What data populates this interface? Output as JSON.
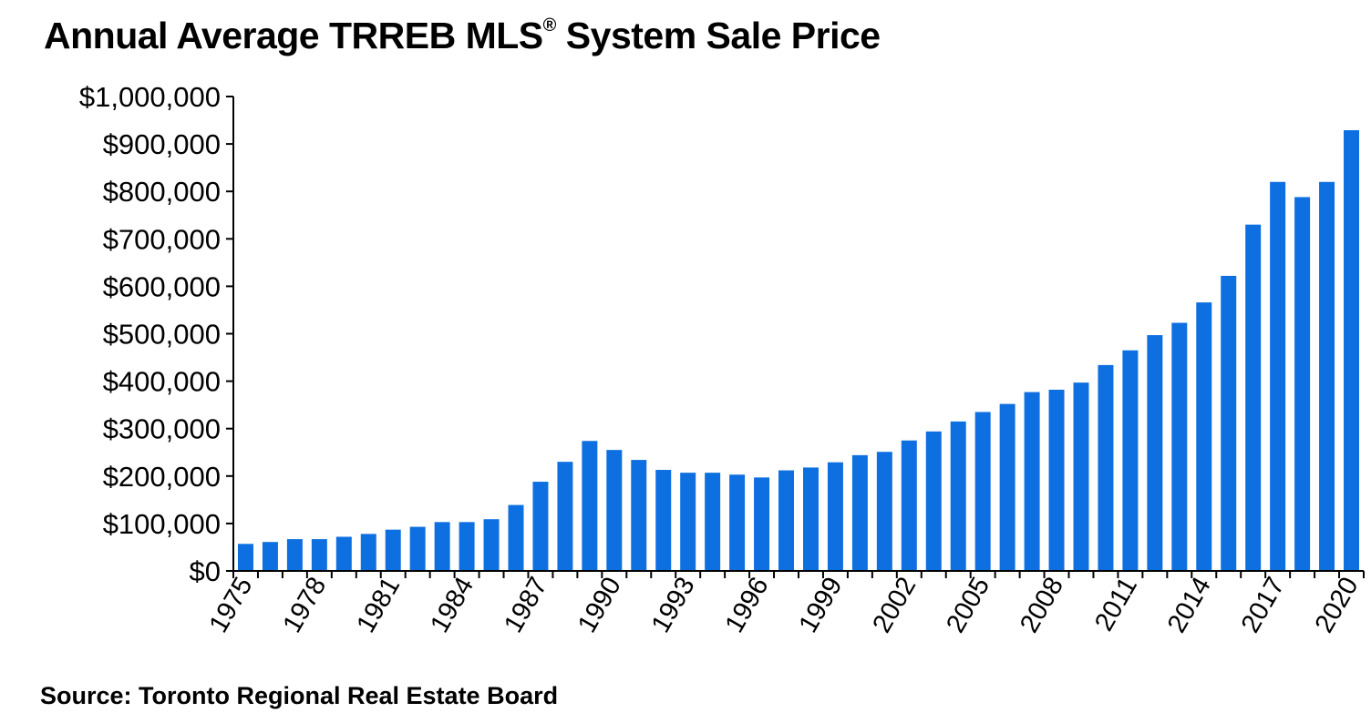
{
  "chart_data": {
    "type": "bar",
    "title": "Annual Average TRREB MLS",
    "title_mark": "®",
    "title_suffix": " System Sale Price",
    "source": "Source: Toronto Regional Real Estate Board",
    "xlabel": "",
    "ylabel": "",
    "ylim": [
      0,
      1000000
    ],
    "yticks": [
      0,
      100000,
      200000,
      300000,
      400000,
      500000,
      600000,
      700000,
      800000,
      900000,
      1000000
    ],
    "ytick_labels": [
      "$0",
      "$100,000",
      "$200,000",
      "$300,000",
      "$400,000",
      "$500,000",
      "$600,000",
      "$700,000",
      "$800,000",
      "$900,000",
      "$1,000,000"
    ],
    "xtick_labels": [
      "1975",
      "1978",
      "1981",
      "1984",
      "1987",
      "1990",
      "1993",
      "1996",
      "1999",
      "2002",
      "2005",
      "2008",
      "2011",
      "2014",
      "2017",
      "2020"
    ],
    "categories": [
      "1975",
      "1976",
      "1977",
      "1978",
      "1979",
      "1980",
      "1981",
      "1982",
      "1983",
      "1984",
      "1985",
      "1986",
      "1987",
      "1988",
      "1989",
      "1990",
      "1991",
      "1992",
      "1993",
      "1994",
      "1995",
      "1996",
      "1997",
      "1998",
      "1999",
      "2000",
      "2001",
      "2002",
      "2003",
      "2004",
      "2005",
      "2006",
      "2007",
      "2008",
      "2009",
      "2010",
      "2011",
      "2012",
      "2013",
      "2014",
      "2015",
      "2016",
      "2017",
      "2018",
      "2019",
      "2020"
    ],
    "values": [
      57000,
      61000,
      67000,
      67000,
      72000,
      78000,
      87000,
      93000,
      103000,
      103000,
      109000,
      139000,
      188000,
      230000,
      274000,
      255000,
      234000,
      213000,
      207000,
      207000,
      203000,
      197000,
      212000,
      218000,
      229000,
      244000,
      251000,
      275000,
      294000,
      315000,
      335000,
      352000,
      377000,
      382000,
      397000,
      434000,
      465000,
      497000,
      523000,
      566000,
      622000,
      730000,
      820000,
      788000,
      820000,
      929000
    ],
    "bar_color": "#0d6fe0",
    "grid": false
  }
}
